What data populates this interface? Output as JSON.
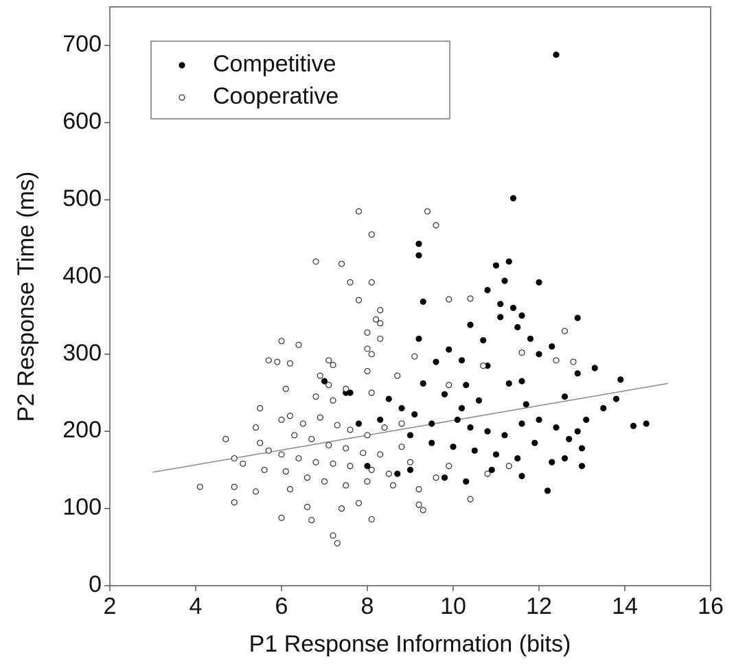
{
  "chart_data": {
    "type": "scatter",
    "xlabel": "P1 Response Information (bits)",
    "ylabel": "P2 Response Time (ms)",
    "xlim": [
      2,
      16
    ],
    "ylim": [
      0,
      750
    ],
    "xticks": [
      2,
      4,
      6,
      8,
      10,
      12,
      14,
      16
    ],
    "yticks": [
      0,
      100,
      200,
      300,
      400,
      500,
      600,
      700
    ],
    "legend": "upper left",
    "series": [
      {
        "name": "Competitive",
        "color": "#000000",
        "fill": "#000000",
        "x": [
          12.4,
          11.4,
          9.2,
          9.2,
          11.3,
          11.0,
          11.2,
          12.0,
          10.8,
          9.3,
          11.4,
          11.1,
          11.6,
          12.9,
          10.4,
          11.1,
          11.5,
          11.8,
          9.2,
          10.7,
          10.2,
          13.3,
          12.9,
          10.8,
          9.6,
          9.9,
          11.6,
          12.3,
          13.9,
          10.3,
          11.3,
          12.0,
          7.0,
          7.6,
          9.3,
          9.8,
          10.6,
          12.6,
          13.8,
          13.5,
          14.2,
          14.5,
          8.5,
          8.8,
          9.1,
          9.5,
          10.1,
          10.4,
          10.8,
          11.2,
          11.6,
          12.0,
          12.4,
          12.9,
          13.1,
          9.0,
          9.5,
          10.0,
          10.5,
          11.0,
          11.5,
          12.3,
          12.6,
          13.0,
          12.2,
          10.3,
          9.8,
          9.0,
          8.7,
          8.0,
          7.5,
          11.9,
          12.7,
          10.2,
          11.7,
          8.3,
          7.8,
          10.9,
          11.6,
          13.0
        ],
        "values": [
          688,
          502,
          443,
          428,
          420,
          415,
          395,
          393,
          383,
          368,
          360,
          365,
          350,
          347,
          338,
          348,
          335,
          320,
          320,
          318,
          292,
          282,
          275,
          285,
          290,
          306,
          265,
          310,
          267,
          260,
          262,
          300,
          265,
          250,
          262,
          248,
          240,
          245,
          242,
          230,
          207,
          210,
          242,
          230,
          222,
          210,
          215,
          205,
          200,
          195,
          210,
          215,
          205,
          200,
          215,
          195,
          185,
          180,
          175,
          170,
          165,
          160,
          165,
          155,
          123,
          135,
          140,
          150,
          145,
          155,
          250,
          185,
          190,
          230,
          235,
          215,
          210,
          150,
          142,
          178
        ]
      },
      {
        "name": "Cooperative",
        "color": "#333333",
        "fill": "#ffffff",
        "x": [
          7.8,
          9.4,
          9.6,
          8.1,
          6.8,
          7.4,
          8.1,
          7.6,
          7.8,
          9.9,
          10.4,
          8.3,
          8.2,
          8.3,
          8.3,
          8.0,
          6.0,
          6.4,
          8.0,
          8.1,
          9.1,
          12.6,
          12.4,
          12.8,
          11.6,
          5.7,
          5.9,
          6.2,
          7.1,
          7.2,
          6.9,
          8.7,
          8.0,
          6.1,
          7.1,
          7.5,
          7.2,
          8.1,
          6.8,
          9.9,
          10.7,
          5.5,
          6.0,
          6.2,
          6.5,
          6.9,
          7.3,
          7.6,
          8.0,
          8.4,
          8.8,
          5.4,
          5.5,
          6.3,
          6.7,
          7.1,
          7.5,
          7.9,
          8.3,
          8.8,
          4.7,
          5.7,
          6.0,
          6.4,
          6.8,
          7.2,
          7.6,
          8.1,
          8.5,
          9.0,
          4.9,
          5.1,
          5.6,
          6.1,
          6.6,
          7.0,
          7.5,
          8.0,
          8.6,
          9.2,
          4.1,
          4.9,
          5.4,
          6.2,
          6.6,
          7.4,
          7.8,
          9.2,
          9.3,
          4.9,
          6.0,
          6.7,
          8.1,
          7.2,
          7.3,
          10.4,
          9.6,
          9.9,
          10.8,
          11.3
        ],
        "values": [
          485,
          485,
          467,
          455,
          420,
          417,
          393,
          393,
          370,
          371,
          372,
          357,
          345,
          340,
          320,
          328,
          317,
          312,
          307,
          300,
          297,
          330,
          292,
          290,
          302,
          292,
          290,
          288,
          292,
          286,
          272,
          272,
          278,
          255,
          260,
          255,
          240,
          250,
          245,
          260,
          285,
          230,
          215,
          220,
          210,
          218,
          208,
          202,
          195,
          205,
          210,
          205,
          185,
          195,
          190,
          182,
          178,
          172,
          170,
          180,
          190,
          175,
          170,
          165,
          160,
          158,
          155,
          150,
          145,
          160,
          165,
          158,
          150,
          148,
          140,
          135,
          130,
          135,
          130,
          125,
          128,
          128,
          122,
          125,
          102,
          100,
          107,
          105,
          98,
          108,
          88,
          85,
          86,
          65,
          55,
          112,
          140,
          155,
          145,
          155
        ]
      }
    ],
    "trend_line": {
      "color": "#888888",
      "x": [
        3,
        15
      ],
      "values": [
        147,
        262
      ]
    }
  }
}
